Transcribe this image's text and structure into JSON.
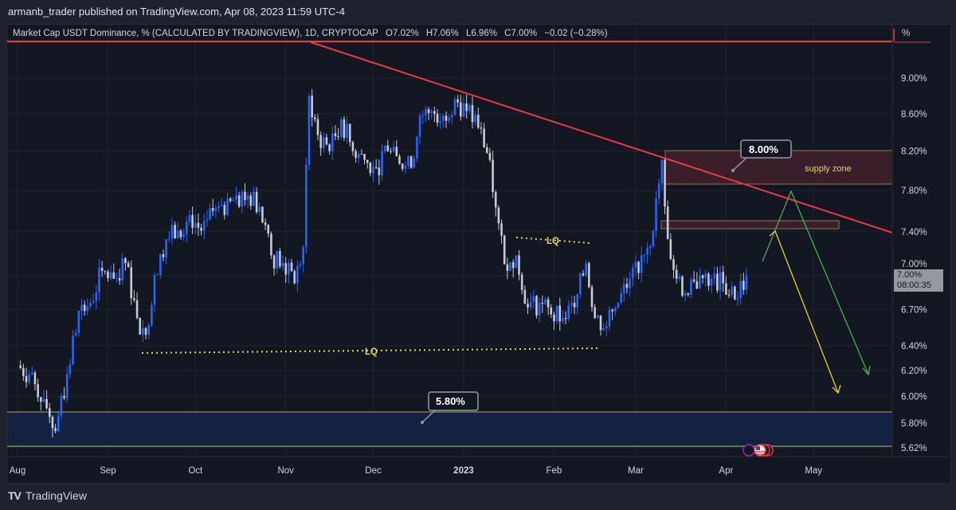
{
  "header": {
    "publisher": "armanb_trader published on TradingView.com, Apr 08, 2023 11:59 UTC-4"
  },
  "legend": {
    "symbol": "Market Cap USDT Dominance, % (CALCULATED BY TRADINGVIEW), 1D, CRYPTOCAP",
    "open": "O7.02%",
    "high": "H7.06%",
    "low": "L6.96%",
    "close": "C7.00%",
    "change": "−0.02 (−0.28%)"
  },
  "price_tag": {
    "price": "7.00%",
    "countdown": "08:00:35"
  },
  "annotations": {
    "lq_top": "LQ",
    "lq_bottom": "LQ",
    "supply_zone": "supply zone",
    "callout_high": "8.00%",
    "callout_low": "5.80%",
    "scale_unit": "%"
  },
  "footer": {
    "brand": "TradingView"
  },
  "colors": {
    "up": "#2962ff",
    "down": "#c8cad1",
    "trendline": "#f23645",
    "supply": "#3a1f2b",
    "demand": "#152447",
    "lq": "#e6d46a",
    "green_path": "#4caf50",
    "yellow_path": "#e6d230"
  },
  "chart_data": {
    "type": "candlestick",
    "title": "Market Cap USDT Dominance, % (CALCULATED BY TRADINGVIEW), 1D, CRYPTOCAP",
    "y_scale": "log",
    "ylim": [
      5.62,
      9.3
    ],
    "y_ticks": [
      "9.00%",
      "8.60%",
      "8.20%",
      "7.80%",
      "7.40%",
      "7.00%",
      "6.70%",
      "6.40%",
      "6.20%",
      "6.00%",
      "5.80%",
      "5.62%"
    ],
    "x_ticks": [
      "Aug",
      "Sep",
      "Oct",
      "Nov",
      "Dec",
      "2023",
      "Feb",
      "Mar",
      "Apr",
      "May"
    ],
    "grid": true,
    "series": [
      {
        "dates": [
          "2022-08-01",
          "2022-08-05",
          "2022-08-10",
          "2022-08-14",
          "2022-08-18",
          "2022-08-22",
          "2022-08-26",
          "2022-08-30",
          "2022-09-03",
          "2022-09-07",
          "2022-09-11",
          "2022-09-14",
          "2022-09-17",
          "2022-09-21",
          "2022-09-25",
          "2022-09-29",
          "2022-10-03",
          "2022-10-07",
          "2022-10-11",
          "2022-10-15",
          "2022-10-19",
          "2022-10-23",
          "2022-10-27",
          "2022-10-31",
          "2022-11-04",
          "2022-11-07",
          "2022-11-09",
          "2022-11-12",
          "2022-11-16",
          "2022-11-20",
          "2022-11-24",
          "2022-11-28",
          "2022-12-02",
          "2022-12-06",
          "2022-12-10",
          "2022-12-14",
          "2022-12-17",
          "2022-12-21",
          "2022-12-25",
          "2022-12-29",
          "2023-01-02",
          "2023-01-06",
          "2023-01-10",
          "2023-01-13",
          "2023-01-16",
          "2023-01-19",
          "2023-01-23",
          "2023-01-27",
          "2023-01-31",
          "2023-02-04",
          "2023-02-08",
          "2023-02-12",
          "2023-02-15",
          "2023-02-19",
          "2023-02-23",
          "2023-02-27",
          "2023-03-03",
          "2023-03-07",
          "2023-03-10",
          "2023-03-12",
          "2023-03-15",
          "2023-03-19",
          "2023-03-23",
          "2023-03-27",
          "2023-03-31",
          "2023-04-04",
          "2023-04-08"
        ],
        "close": [
          6.24,
          6.17,
          5.98,
          5.74,
          6.17,
          6.69,
          6.76,
          7.04,
          6.97,
          7.11,
          6.63,
          6.49,
          7.0,
          7.33,
          7.41,
          7.56,
          7.41,
          7.6,
          7.56,
          7.75,
          7.75,
          7.64,
          7.18,
          7.11,
          6.93,
          7.26,
          8.8,
          8.37,
          8.2,
          8.54,
          8.2,
          8.11,
          8.03,
          8.2,
          8.07,
          8.03,
          8.58,
          8.63,
          8.58,
          8.76,
          8.63,
          8.45,
          8.11,
          7.48,
          7.04,
          7.18,
          6.72,
          6.76,
          6.66,
          6.63,
          6.72,
          7.11,
          6.63,
          6.56,
          6.76,
          6.97,
          7.18,
          7.41,
          8.11,
          7.33,
          6.97,
          6.83,
          7.0,
          6.97,
          6.93,
          6.79,
          7.0
        ]
      }
    ]
  }
}
